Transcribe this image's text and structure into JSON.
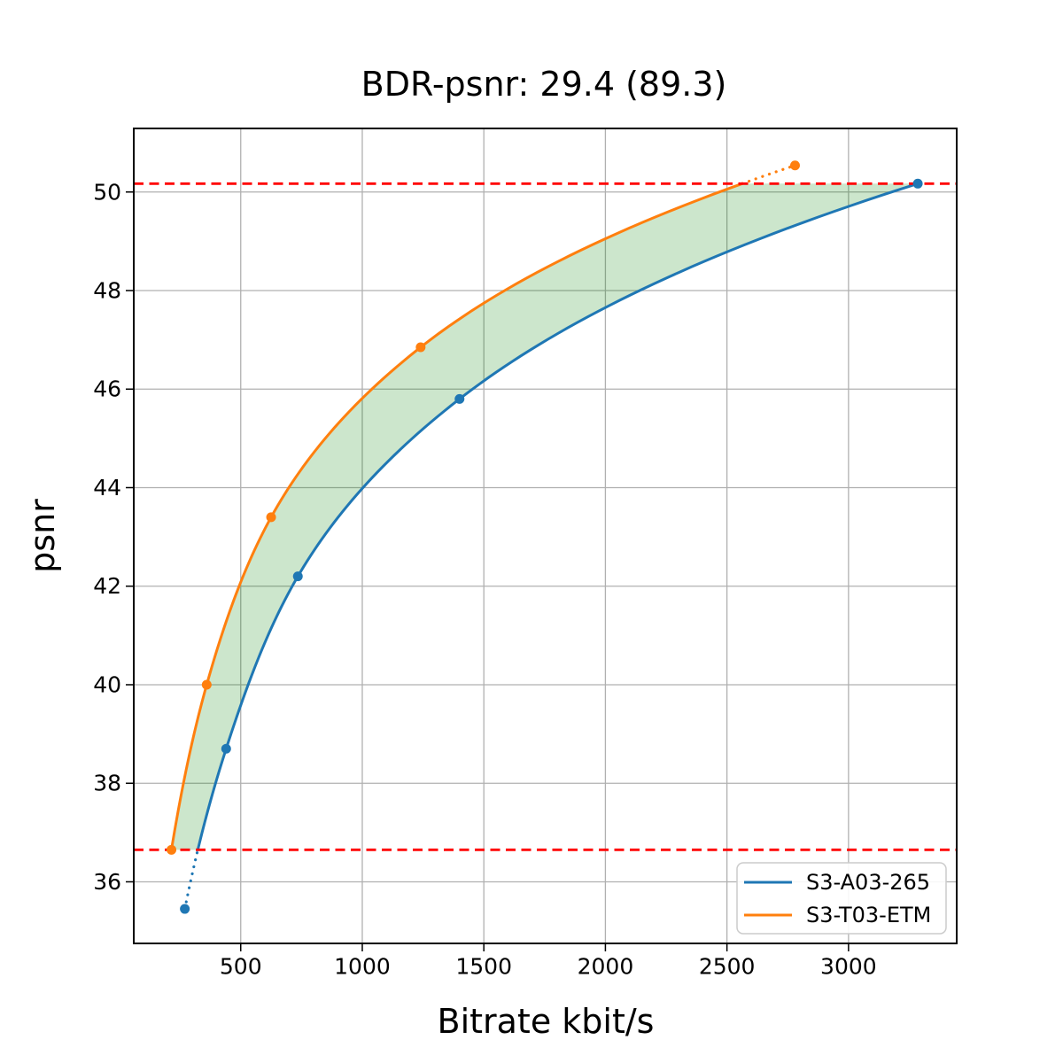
{
  "chart_data": {
    "type": "line",
    "title": "BDR-psnr: 29.4 (89.3)",
    "bdr_psnr": 29.4,
    "bdr_psnr_secondary": 89.3,
    "xlabel": "Bitrate kbit/s",
    "ylabel": "psnr",
    "xlim": [
      60,
      3445
    ],
    "ylim": [
      34.75,
      51.29
    ],
    "xticks": [
      500,
      1000,
      1500,
      2000,
      2500,
      3000
    ],
    "yticks": [
      36,
      38,
      40,
      42,
      44,
      46,
      48,
      50
    ],
    "grid": true,
    "grid_color": "#b0b0b0",
    "background_color": "#ffffff",
    "legend_position": "lower right",
    "legend_border_color": "#cccccc",
    "series": [
      {
        "name": "S3-A03-265",
        "color": "#1f77b4",
        "rates": [
          270,
          440,
          735,
          1400,
          3285
        ],
        "psnr": [
          35.45,
          38.7,
          42.2,
          45.8,
          50.17
        ],
        "solid_psnr_range": [
          36.65,
          50.17
        ],
        "dotted_psnr_range": [
          35.45,
          36.65
        ]
      },
      {
        "name": "S3-T03-ETM",
        "color": "#ff7f0e",
        "rates": [
          215,
          360,
          625,
          1240,
          2780
        ],
        "psnr": [
          36.65,
          40.0,
          43.4,
          46.85,
          50.54
        ],
        "solid_psnr_range": [
          36.65,
          50.17
        ],
        "dotted_psnr_range": [
          50.17,
          50.54
        ]
      }
    ],
    "overlap_lines": {
      "color": "#ff0000",
      "style": "dashed",
      "low_psnr": 36.65,
      "high_psnr": 50.17
    },
    "fill_between_color": "rgba(0,128,0,0.2)"
  }
}
